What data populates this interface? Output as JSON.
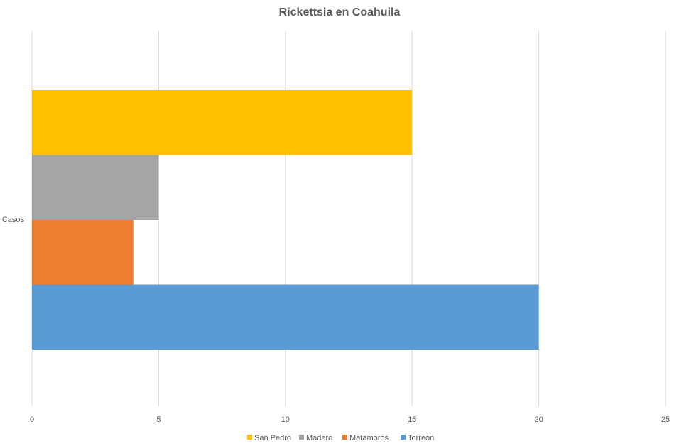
{
  "chart_data": {
    "type": "bar",
    "orientation": "horizontal",
    "title": "Rickettsia en Coahuila",
    "categories": [
      "Casos"
    ],
    "series": [
      {
        "name": "San Pedro",
        "values": [
          15
        ],
        "color": "#FFC000"
      },
      {
        "name": "Madero",
        "values": [
          5
        ],
        "color": "#A5A5A5"
      },
      {
        "name": "Matamoros",
        "values": [
          4
        ],
        "color": "#ED7D31"
      },
      {
        "name": "Torreón",
        "values": [
          20
        ],
        "color": "#5B9BD5"
      }
    ],
    "xlim": [
      0,
      25
    ],
    "x_ticks": [
      "0",
      "5",
      "10",
      "15",
      "20",
      "25"
    ],
    "grid": true,
    "legend_position": "bottom"
  }
}
